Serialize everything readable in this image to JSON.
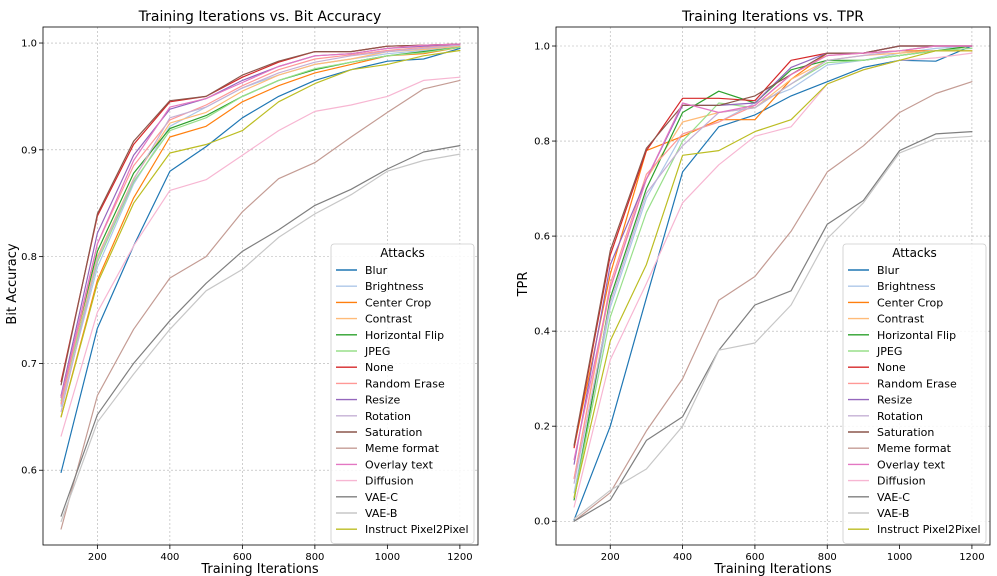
{
  "legend_title": "Attacks",
  "colors": [
    "#1f77b4",
    "#aec7e8",
    "#ff7f0e",
    "#ffbb78",
    "#2ca02c",
    "#98df8a",
    "#d62728",
    "#ff9896",
    "#9467bd",
    "#c5b0d5",
    "#8c564b",
    "#c49c94",
    "#e377c2",
    "#f7b6d2",
    "#7f7f7f",
    "#c7c7c7",
    "#bcbd22"
  ],
  "chart_data": [
    {
      "type": "line",
      "title": "Training Iterations vs. Bit Accuracy",
      "xlabel": "Training Iterations",
      "ylabel": "Bit Accuracy",
      "xlim": [
        50,
        1250
      ],
      "ylim": [
        0.53,
        1.015
      ],
      "xticks": [
        200,
        400,
        600,
        800,
        1000,
        1200
      ],
      "xtick_labels": [
        "200",
        "400",
        "600",
        "800",
        "1000",
        "1200"
      ],
      "yticks": [
        0.6,
        0.7,
        0.8,
        0.9,
        1.0
      ],
      "ytick_labels": [
        "0.6",
        "0.7",
        "0.8",
        "0.9",
        "1.0"
      ],
      "grid": true,
      "legend_position": "lower-right",
      "x": [
        100,
        200,
        300,
        400,
        500,
        600,
        700,
        800,
        900,
        1000,
        1100,
        1200
      ],
      "series": [
        {
          "name": "Blur",
          "values": [
            0.598,
            0.733,
            0.81,
            0.88,
            0.903,
            0.93,
            0.95,
            0.965,
            0.975,
            0.983,
            0.985,
            0.995
          ]
        },
        {
          "name": "Brightness",
          "values": [
            0.66,
            0.79,
            0.868,
            0.922,
            0.94,
            0.958,
            0.97,
            0.98,
            0.985,
            0.99,
            0.993,
            0.997
          ]
        },
        {
          "name": "Center Crop",
          "values": [
            0.65,
            0.778,
            0.855,
            0.912,
            0.922,
            0.945,
            0.96,
            0.972,
            0.98,
            0.988,
            0.99,
            0.996
          ]
        },
        {
          "name": "Contrast",
          "values": [
            0.663,
            0.8,
            0.873,
            0.925,
            0.935,
            0.955,
            0.97,
            0.98,
            0.985,
            0.992,
            0.994,
            0.997
          ]
        },
        {
          "name": "Horizontal Flip",
          "values": [
            0.668,
            0.805,
            0.878,
            0.92,
            0.932,
            0.95,
            0.965,
            0.975,
            0.982,
            0.988,
            0.992,
            0.996
          ]
        },
        {
          "name": "JPEG",
          "values": [
            0.665,
            0.795,
            0.87,
            0.918,
            0.93,
            0.95,
            0.965,
            0.976,
            0.982,
            0.988,
            0.991,
            0.996
          ]
        },
        {
          "name": "None",
          "values": [
            0.683,
            0.838,
            0.905,
            0.945,
            0.95,
            0.968,
            0.982,
            0.992,
            0.992,
            0.997,
            0.998,
            0.999
          ]
        },
        {
          "name": "Random Erase",
          "values": [
            0.662,
            0.812,
            0.885,
            0.928,
            0.942,
            0.96,
            0.975,
            0.985,
            0.989,
            0.993,
            0.996,
            0.998
          ]
        },
        {
          "name": "Resize",
          "values": [
            0.67,
            0.822,
            0.895,
            0.938,
            0.948,
            0.965,
            0.978,
            0.988,
            0.99,
            0.995,
            0.997,
            0.999
          ]
        },
        {
          "name": "Rotation",
          "values": [
            0.655,
            0.798,
            0.872,
            0.93,
            0.94,
            0.958,
            0.972,
            0.982,
            0.988,
            0.992,
            0.995,
            0.998
          ]
        },
        {
          "name": "Saturation",
          "values": [
            0.68,
            0.84,
            0.908,
            0.946,
            0.95,
            0.97,
            0.983,
            0.992,
            0.992,
            0.997,
            0.998,
            0.999
          ]
        },
        {
          "name": "Meme format",
          "values": [
            0.545,
            0.67,
            0.732,
            0.78,
            0.8,
            0.842,
            0.873,
            0.888,
            0.912,
            0.935,
            0.957,
            0.965
          ]
        },
        {
          "name": "Overlay text",
          "values": [
            0.668,
            0.812,
            0.89,
            0.94,
            0.948,
            0.963,
            0.978,
            0.988,
            0.99,
            0.995,
            0.998,
            0.999
          ]
        },
        {
          "name": "Diffusion",
          "values": [
            0.632,
            0.748,
            0.81,
            0.862,
            0.872,
            0.895,
            0.918,
            0.936,
            0.942,
            0.95,
            0.965,
            0.968
          ]
        },
        {
          "name": "VAE-C",
          "values": [
            0.557,
            0.652,
            0.7,
            0.74,
            0.775,
            0.805,
            0.825,
            0.848,
            0.863,
            0.882,
            0.898,
            0.904
          ]
        },
        {
          "name": "VAE-B",
          "values": [
            0.552,
            0.645,
            0.69,
            0.732,
            0.768,
            0.788,
            0.818,
            0.84,
            0.858,
            0.88,
            0.89,
            0.896
          ]
        },
        {
          "name": "Instruct Pixel2Pixel",
          "values": [
            0.65,
            0.775,
            0.85,
            0.897,
            0.905,
            0.918,
            0.945,
            0.962,
            0.975,
            0.98,
            0.988,
            0.993
          ]
        }
      ]
    },
    {
      "type": "line",
      "title": "Training Iterations vs. TPR",
      "xlabel": "Training Iterations",
      "ylabel": "TPR",
      "xlim": [
        50,
        1250
      ],
      "ylim": [
        -0.05,
        1.04
      ],
      "xticks": [
        200,
        400,
        600,
        800,
        1000,
        1200
      ],
      "xtick_labels": [
        "200",
        "400",
        "600",
        "800",
        "1000",
        "1200"
      ],
      "yticks": [
        0.0,
        0.2,
        0.4,
        0.6,
        0.8,
        1.0
      ],
      "ytick_labels": [
        "0.0",
        "0.2",
        "0.4",
        "0.6",
        "0.8",
        "1.0"
      ],
      "grid": true,
      "legend_position": "lower-right",
      "x": [
        100,
        200,
        300,
        400,
        500,
        600,
        700,
        800,
        900,
        1000,
        1100,
        1200
      ],
      "series": [
        {
          "name": "Blur",
          "values": [
            0.003,
            0.2,
            0.47,
            0.735,
            0.83,
            0.855,
            0.895,
            0.925,
            0.955,
            0.97,
            0.968,
            1.0
          ]
        },
        {
          "name": "Brightness",
          "values": [
            0.06,
            0.45,
            0.68,
            0.815,
            0.84,
            0.88,
            0.91,
            0.96,
            0.97,
            0.985,
            0.995,
            1.0
          ]
        },
        {
          "name": "Center Crop",
          "values": [
            0.155,
            0.52,
            0.78,
            0.81,
            0.845,
            0.845,
            0.93,
            0.985,
            0.985,
            0.99,
            0.99,
            0.99
          ]
        },
        {
          "name": "Contrast",
          "values": [
            0.09,
            0.49,
            0.72,
            0.84,
            0.86,
            0.87,
            0.93,
            0.97,
            0.98,
            0.985,
            0.99,
            1.0
          ]
        },
        {
          "name": "Horizontal Flip",
          "values": [
            0.045,
            0.47,
            0.7,
            0.86,
            0.905,
            0.88,
            0.95,
            0.97,
            0.97,
            0.98,
            0.99,
            1.0
          ]
        },
        {
          "name": "JPEG",
          "values": [
            0.05,
            0.43,
            0.65,
            0.8,
            0.88,
            0.87,
            0.92,
            0.965,
            0.97,
            0.98,
            0.99,
            0.995
          ]
        },
        {
          "name": "None",
          "values": [
            0.155,
            0.56,
            0.78,
            0.89,
            0.89,
            0.885,
            0.97,
            0.985,
            0.985,
            1.0,
            1.0,
            1.0
          ]
        },
        {
          "name": "Random Erase",
          "values": [
            0.09,
            0.5,
            0.73,
            0.815,
            0.84,
            0.875,
            0.94,
            0.98,
            0.985,
            0.99,
            1.0,
            1.0
          ]
        },
        {
          "name": "Resize",
          "values": [
            0.12,
            0.54,
            0.72,
            0.875,
            0.875,
            0.88,
            0.955,
            0.985,
            0.985,
            1.0,
            1.0,
            1.0
          ]
        },
        {
          "name": "Rotation",
          "values": [
            0.08,
            0.46,
            0.69,
            0.79,
            0.86,
            0.87,
            0.92,
            0.97,
            0.98,
            0.99,
            1.0,
            1.0
          ]
        },
        {
          "name": "Saturation",
          "values": [
            0.16,
            0.57,
            0.785,
            0.875,
            0.875,
            0.895,
            0.94,
            0.985,
            0.985,
            1.0,
            1.0,
            1.0
          ]
        },
        {
          "name": "Meme format",
          "values": [
            0.0,
            0.06,
            0.19,
            0.3,
            0.465,
            0.515,
            0.61,
            0.735,
            0.79,
            0.86,
            0.9,
            0.925
          ]
        },
        {
          "name": "Overlay text",
          "values": [
            0.13,
            0.49,
            0.72,
            0.88,
            0.86,
            0.875,
            0.94,
            0.98,
            0.985,
            0.99,
            1.0,
            1.0
          ]
        },
        {
          "name": "Diffusion",
          "values": [
            0.03,
            0.34,
            0.5,
            0.67,
            0.75,
            0.81,
            0.83,
            0.92,
            0.95,
            0.97,
            0.975,
            0.985
          ]
        },
        {
          "name": "VAE-C",
          "values": [
            0.0,
            0.045,
            0.17,
            0.22,
            0.36,
            0.455,
            0.485,
            0.625,
            0.675,
            0.78,
            0.815,
            0.82
          ]
        },
        {
          "name": "VAE-B",
          "values": [
            0.005,
            0.065,
            0.11,
            0.2,
            0.36,
            0.375,
            0.455,
            0.595,
            0.67,
            0.775,
            0.805,
            0.81
          ]
        },
        {
          "name": "Instruct Pixel2Pixel",
          "values": [
            0.05,
            0.38,
            0.54,
            0.77,
            0.78,
            0.82,
            0.845,
            0.92,
            0.95,
            0.97,
            0.99,
            0.99
          ]
        }
      ]
    }
  ]
}
